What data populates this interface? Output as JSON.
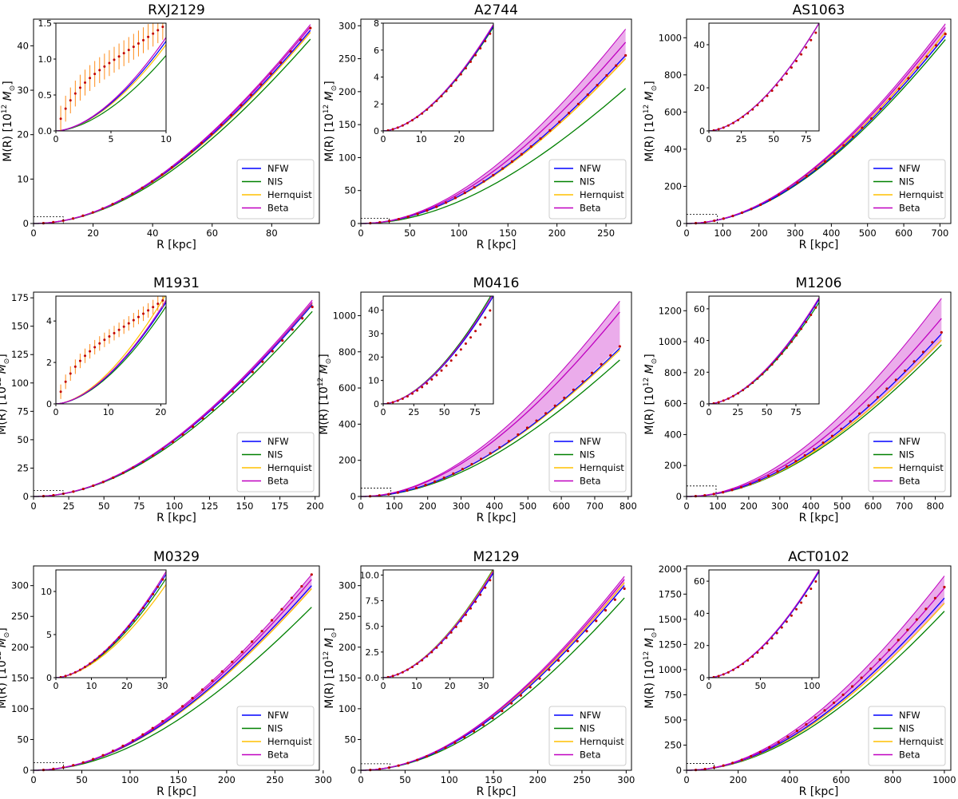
{
  "figure": {
    "type": "multi-panel",
    "rows": 3,
    "cols": 3
  },
  "colors": {
    "NFW": "#0000ff",
    "NIS": "#008000",
    "Hernquist": "#ffc000",
    "Beta": "#c000c0",
    "data": "#c00000",
    "err": "#ff8c1a",
    "band": "#e080e0"
  },
  "legend": [
    "NFW",
    "NIS",
    "Hernquist",
    "Beta"
  ],
  "chart_data": [
    {
      "type": "line",
      "title": "RXJ2129",
      "xlabel": "R [kpc]",
      "ylabel": "M(R) [10$^{12}$ M$_\\odot$]",
      "xlim": [
        0,
        96
      ],
      "ylim": [
        0,
        46
      ],
      "xticks": [
        0,
        20,
        40,
        60,
        80
      ],
      "yticks": [
        0,
        10,
        20,
        30,
        40
      ],
      "xticklabels": [
        "0",
        "20",
        "40",
        "60",
        "80"
      ],
      "yticklabels": [
        "0",
        "10",
        "20",
        "30",
        "40"
      ],
      "xmax": 93,
      "final": {
        "NFW": 43.5,
        "NIS": 41.5,
        "Hernquist": 43.0,
        "Beta": 44.3
      },
      "beta_upper": 44.8,
      "data_end": 44.0,
      "inset": {
        "xlim": [
          0,
          10
        ],
        "ylim": [
          0,
          1.5
        ],
        "xticks": [
          0,
          5,
          10
        ],
        "yticks": [
          0,
          0.5,
          1.0,
          1.5
        ],
        "xticklabels": [
          "0",
          "5",
          "10"
        ],
        "yticklabels": [
          "0.0",
          "0.5",
          "1.0",
          "1.5"
        ],
        "end": {
          "NFW": 1.25,
          "NIS": 1.05,
          "Hernquist": 1.2,
          "Beta": 1.3
        },
        "data_shape": "core",
        "data_end": 1.45,
        "err": 0.18
      }
    },
    {
      "type": "line",
      "title": "A2744",
      "xlabel": "R [kpc]",
      "ylabel": "M(R) [10$^{12}$ M$_\\odot$]",
      "xlim": [
        0,
        276
      ],
      "ylim": [
        0,
        310
      ],
      "xticks": [
        0,
        50,
        100,
        150,
        200,
        250
      ],
      "yticks": [
        0,
        50,
        100,
        150,
        200,
        250,
        300
      ],
      "xticklabels": [
        "0",
        "50",
        "100",
        "150",
        "200",
        "250"
      ],
      "yticklabels": [
        "0",
        "50",
        "100",
        "150",
        "200",
        "250",
        "300"
      ],
      "xmax": 270,
      "final": {
        "NFW": 255,
        "NIS": 205,
        "Hernquist": 250,
        "Beta": 275
      },
      "beta_upper": 295,
      "data_end": 255,
      "inset": {
        "xlim": [
          0,
          29
        ],
        "ylim": [
          0,
          8
        ],
        "xticks": [
          0,
          10,
          20
        ],
        "yticks": [
          0,
          2,
          4,
          6,
          8
        ],
        "xticklabels": [
          "0",
          "10",
          "20"
        ],
        "yticklabels": [
          "0",
          "2",
          "4",
          "6",
          "8"
        ],
        "end": {
          "NFW": 7.8,
          "NIS": 7.7,
          "Hernquist": 7.8,
          "Beta": 7.9
        },
        "data_shape": "normal",
        "data_end": 7.6,
        "err": 0
      }
    },
    {
      "type": "line",
      "title": "AS1063",
      "xlabel": "R [kpc]",
      "ylabel": "M(R) [10$^{12}$ M$_\\odot$]",
      "xlim": [
        0,
        730
      ],
      "ylim": [
        0,
        1100
      ],
      "xticks": [
        0,
        100,
        200,
        300,
        400,
        500,
        600,
        700
      ],
      "yticks": [
        0,
        200,
        400,
        600,
        800,
        1000
      ],
      "xticklabels": [
        "0",
        "100",
        "200",
        "300",
        "400",
        "500",
        "600",
        "700"
      ],
      "yticklabels": [
        "0",
        "200",
        "400",
        "600",
        "800",
        "1000"
      ],
      "xmax": 715,
      "final": {
        "NFW": 1010,
        "NIS": 990,
        "Hernquist": 1030,
        "Beta": 1055
      },
      "beta_upper": 1075,
      "data_end": 1020,
      "inset": {
        "xlim": [
          0,
          85
        ],
        "ylim": [
          0,
          50
        ],
        "xticks": [
          0,
          25,
          50,
          75
        ],
        "yticks": [
          0,
          20,
          40
        ],
        "xticklabels": [
          "0",
          "25",
          "50",
          "75"
        ],
        "yticklabels": [
          "0",
          "20",
          "40"
        ],
        "end": {
          "NFW": 50,
          "NIS": 50,
          "Hernquist": 50,
          "Beta": 50
        },
        "data_shape": "normal",
        "data_end": 48,
        "err": 0
      }
    },
    {
      "type": "line",
      "title": "M1931",
      "xlabel": "R [kpc]",
      "ylabel": "M(R) [10$^{12}$ M$_\\odot$]",
      "xlim": [
        0,
        203
      ],
      "ylim": [
        0,
        180
      ],
      "xticks": [
        0,
        25,
        50,
        75,
        100,
        125,
        150,
        175,
        200
      ],
      "yticks": [
        0,
        25,
        50,
        75,
        100,
        125,
        150,
        175
      ],
      "xticklabels": [
        "0",
        "25",
        "50",
        "75",
        "100",
        "125",
        "150",
        "175",
        "200"
      ],
      "yticklabels": [
        "0",
        "25",
        "50",
        "75",
        "100",
        "125",
        "150",
        "175"
      ],
      "xmax": 198,
      "final": {
        "NFW": 169,
        "NIS": 163,
        "Hernquist": 170,
        "Beta": 171
      },
      "beta_upper": 173,
      "data_end": 167,
      "inset": {
        "xlim": [
          0,
          21
        ],
        "ylim": [
          0,
          5.2
        ],
        "xticks": [
          0,
          10,
          20
        ],
        "yticks": [
          0,
          2,
          4
        ],
        "xticklabels": [
          "0",
          "10",
          "20"
        ],
        "yticklabels": [
          "0",
          "2",
          "4"
        ],
        "end": {
          "NFW": 4.9,
          "NIS": 4.7,
          "Hernquist": 5.3,
          "Beta": 5.0
        },
        "data_shape": "core",
        "data_end": 5.0,
        "err": 0.35
      }
    },
    {
      "type": "line",
      "title": "M0416",
      "xlabel": "R [kpc]",
      "ylabel": "M(R) [10$^{12}$ M$_\\odot$]",
      "xlim": [
        0,
        810
      ],
      "ylim": [
        0,
        1130
      ],
      "xticks": [
        0,
        100,
        200,
        300,
        400,
        500,
        600,
        700,
        800
      ],
      "yticks": [
        0,
        200,
        400,
        600,
        800,
        1000
      ],
      "xticklabels": [
        "0",
        "100",
        "200",
        "300",
        "400",
        "500",
        "600",
        "700",
        "800"
      ],
      "yticklabels": [
        "0",
        "200",
        "400",
        "600",
        "800",
        "1000"
      ],
      "xmax": 775,
      "final": {
        "NFW": 820,
        "NIS": 755,
        "Hernquist": 810,
        "Beta": 1020
      },
      "beta_upper": 1080,
      "beta_lower": 830,
      "data_end": 830,
      "inset": {
        "xlim": [
          0,
          90
        ],
        "ylim": [
          0,
          46
        ],
        "xticks": [
          0,
          25,
          50,
          75
        ],
        "yticks": [
          0,
          10,
          20,
          30,
          40
        ],
        "xticklabels": [
          "0",
          "25",
          "50",
          "75"
        ],
        "yticklabels": [
          "0",
          "10",
          "20",
          "30",
          "40"
        ],
        "end": {
          "NFW": 46,
          "NIS": 48,
          "Hernquist": 46,
          "Beta": 47
        },
        "data_shape": "normal",
        "data_end": 42,
        "err": 0
      }
    },
    {
      "type": "line",
      "title": "M1206",
      "xlabel": "R [kpc]",
      "ylabel": "M(R) [10$^{12}$ M$_\\odot$]",
      "xlim": [
        0,
        850
      ],
      "ylim": [
        0,
        1320
      ],
      "xticks": [
        0,
        100,
        200,
        300,
        400,
        500,
        600,
        700,
        800
      ],
      "yticks": [
        0,
        200,
        400,
        600,
        800,
        1000,
        1200
      ],
      "xticklabels": [
        "0",
        "100",
        "200",
        "300",
        "400",
        "500",
        "600",
        "700",
        "800"
      ],
      "yticklabels": [
        "0",
        "200",
        "400",
        "600",
        "800",
        "1000",
        "1200"
      ],
      "xmax": 820,
      "final": {
        "NFW": 1050,
        "NIS": 980,
        "Hernquist": 1010,
        "Beta": 1150
      },
      "beta_upper": 1280,
      "beta_lower": 1000,
      "data_end": 1060,
      "inset": {
        "xlim": [
          0,
          95
        ],
        "ylim": [
          0,
          68
        ],
        "xticks": [
          0,
          25,
          50,
          75
        ],
        "yticks": [
          0,
          20,
          40,
          60
        ],
        "xticklabels": [
          "0",
          "25",
          "50",
          "75"
        ],
        "yticklabels": [
          "0",
          "20",
          "40",
          "60"
        ],
        "end": {
          "NFW": 66,
          "NIS": 64,
          "Hernquist": 66,
          "Beta": 67
        },
        "data_shape": "normal",
        "data_end": 64,
        "err": 0
      }
    },
    {
      "type": "line",
      "title": "M0329",
      "xlabel": "R [kpc]",
      "ylabel": "M(R) [10$^{12}$ M$_\\odot$]",
      "xlim": [
        0,
        296
      ],
      "ylim": [
        0,
        332
      ],
      "xticks": [
        0,
        50,
        100,
        150,
        200,
        250,
        300
      ],
      "yticks": [
        0,
        50,
        100,
        150,
        200,
        250,
        300
      ],
      "xticklabels": [
        "0",
        "50",
        "100",
        "150",
        "200",
        "250",
        "300"
      ],
      "yticklabels": [
        "0",
        "50",
        "100",
        "150",
        "200",
        "250",
        "300"
      ],
      "xmax": 288,
      "final": {
        "NFW": 300,
        "NIS": 265,
        "Hernquist": 295,
        "Beta": 310
      },
      "beta_upper": 318,
      "data_end": 318,
      "inset": {
        "xlim": [
          0,
          31
        ],
        "ylim": [
          0,
          12.5
        ],
        "xticks": [
          0,
          10,
          20,
          30
        ],
        "yticks": [
          0,
          5,
          10
        ],
        "xticklabels": [
          "0",
          "10",
          "20",
          "30"
        ],
        "yticklabels": [
          "0",
          "5",
          "10"
        ],
        "end": {
          "NFW": 12.0,
          "NIS": 11.5,
          "Hernquist": 10.8,
          "Beta": 12.3
        },
        "data_shape": "normal",
        "data_end": 12.0,
        "err": 0
      }
    },
    {
      "type": "line",
      "title": "M2129",
      "xlabel": "R [kpc]",
      "ylabel": "M(R) [10$^{12}$ M$_\\odot$]",
      "xlim": [
        0,
        306
      ],
      "ylim": [
        0,
        332
      ],
      "xticks": [
        0,
        50,
        100,
        150,
        200,
        250,
        300
      ],
      "yticks": [
        0,
        50,
        100,
        150,
        200,
        250,
        300
      ],
      "xticklabels": [
        "0",
        "50",
        "100",
        "150",
        "200",
        "250",
        "300"
      ],
      "yticklabels": [
        "0",
        "50",
        "100",
        "150",
        "200",
        "250",
        "300"
      ],
      "xmax": 298,
      "final": {
        "NFW": 300,
        "NIS": 280,
        "Hernquist": 305,
        "Beta": 310
      },
      "beta_upper": 315,
      "data_end": 295,
      "inset": {
        "xlim": [
          0,
          33
        ],
        "ylim": [
          0,
          10.5
        ],
        "xticks": [
          0,
          10,
          20,
          30
        ],
        "yticks": [
          0,
          2.5,
          5,
          7.5,
          10
        ],
        "xticklabels": [
          "0",
          "10",
          "20",
          "30"
        ],
        "yticklabels": [
          "0.0",
          "2.5",
          "5.0",
          "7.5",
          "10.0"
        ],
        "end": {
          "NFW": 10.2,
          "NIS": 10.6,
          "Hernquist": 10.5,
          "Beta": 10.4
        },
        "data_shape": "normal",
        "data_end": 10.0,
        "err": 0
      }
    },
    {
      "type": "line",
      "title": "ACT0102",
      "xlabel": "R [kpc]",
      "ylabel": "M(R) [10$^{12}$ M$_\\odot$]",
      "xlim": [
        0,
        1025
      ],
      "ylim": [
        0,
        2030
      ],
      "xticks": [
        0,
        200,
        400,
        600,
        800,
        1000
      ],
      "yticks": [
        0,
        250,
        500,
        750,
        1000,
        1250,
        1500,
        1750,
        2000
      ],
      "xticklabels": [
        "0",
        "200",
        "400",
        "600",
        "800",
        "1000"
      ],
      "yticklabels": [
        "0",
        "250",
        "500",
        "750",
        "1000",
        "1250",
        "1500",
        "1750",
        "2000"
      ],
      "xmax": 1000,
      "final": {
        "NFW": 1710,
        "NIS": 1580,
        "Hernquist": 1660,
        "Beta": 1810
      },
      "beta_upper": 1930,
      "beta_lower": 1650,
      "data_end": 1820,
      "inset": {
        "xlim": [
          0,
          107
        ],
        "ylim": [
          0,
          67
        ],
        "xticks": [
          0,
          50,
          100
        ],
        "yticks": [
          0,
          20,
          40,
          60
        ],
        "xticklabels": [
          "0",
          "50",
          "100"
        ],
        "yticklabels": [
          "0",
          "20",
          "40",
          "60"
        ],
        "end": {
          "NFW": 66,
          "NIS": 66,
          "Hernquist": 66,
          "Beta": 67
        },
        "data_shape": "normal",
        "data_end": 63,
        "err": 0
      }
    }
  ]
}
